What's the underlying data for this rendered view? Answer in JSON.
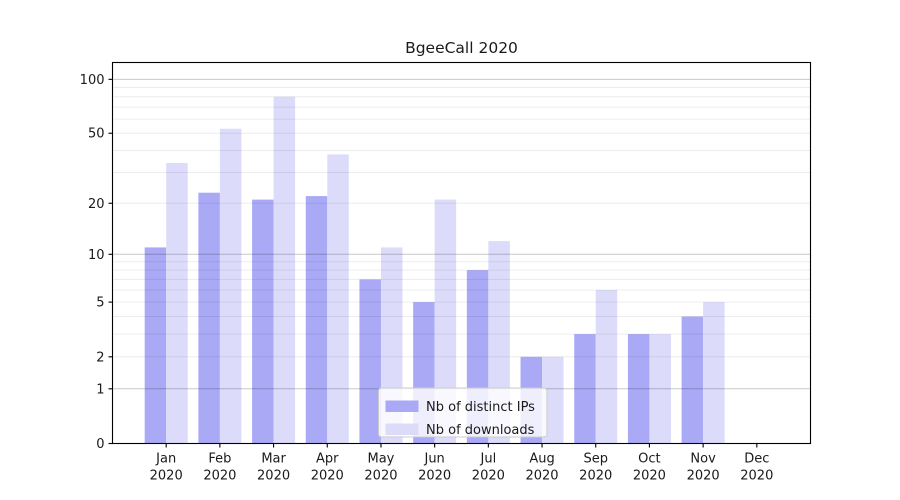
{
  "chart_data": {
    "type": "bar",
    "title": "BgeeCall 2020",
    "categories": [
      "Jan",
      "Feb",
      "Mar",
      "Apr",
      "May",
      "Jun",
      "Jul",
      "Aug",
      "Sep",
      "Oct",
      "Nov",
      "Dec"
    ],
    "category_year": "2020",
    "series": [
      {
        "name": "Nb of distinct IPs",
        "color": "#a9a9f6",
        "values": [
          11,
          23,
          21,
          22,
          7,
          5,
          8,
          2,
          3,
          3,
          4,
          0
        ]
      },
      {
        "name": "Nb of downloads",
        "color": "#dcdcfa",
        "values": [
          34,
          53,
          80,
          38,
          11,
          21,
          12,
          2,
          6,
          3,
          5,
          0
        ]
      }
    ],
    "yscale": "log1p",
    "ylim": [
      0,
      124
    ],
    "yticks": [
      0,
      1,
      2,
      5,
      10,
      20,
      50,
      100
    ],
    "grid": {
      "minor_values": [
        2,
        3,
        4,
        5,
        6,
        7,
        8,
        9,
        20,
        30,
        40,
        50,
        60,
        70,
        80,
        90
      ],
      "major_values": [
        1,
        10,
        100
      ],
      "minor_color": "rgba(0,0,0,0.075)",
      "major_color": "rgba(0,0,0,0.21)"
    },
    "legend": {
      "position": "lower center",
      "entries": [
        "Nb of distinct IPs",
        "Nb of downloads"
      ]
    },
    "axis_color": "#000000",
    "text_color": "#1a1a1a"
  }
}
